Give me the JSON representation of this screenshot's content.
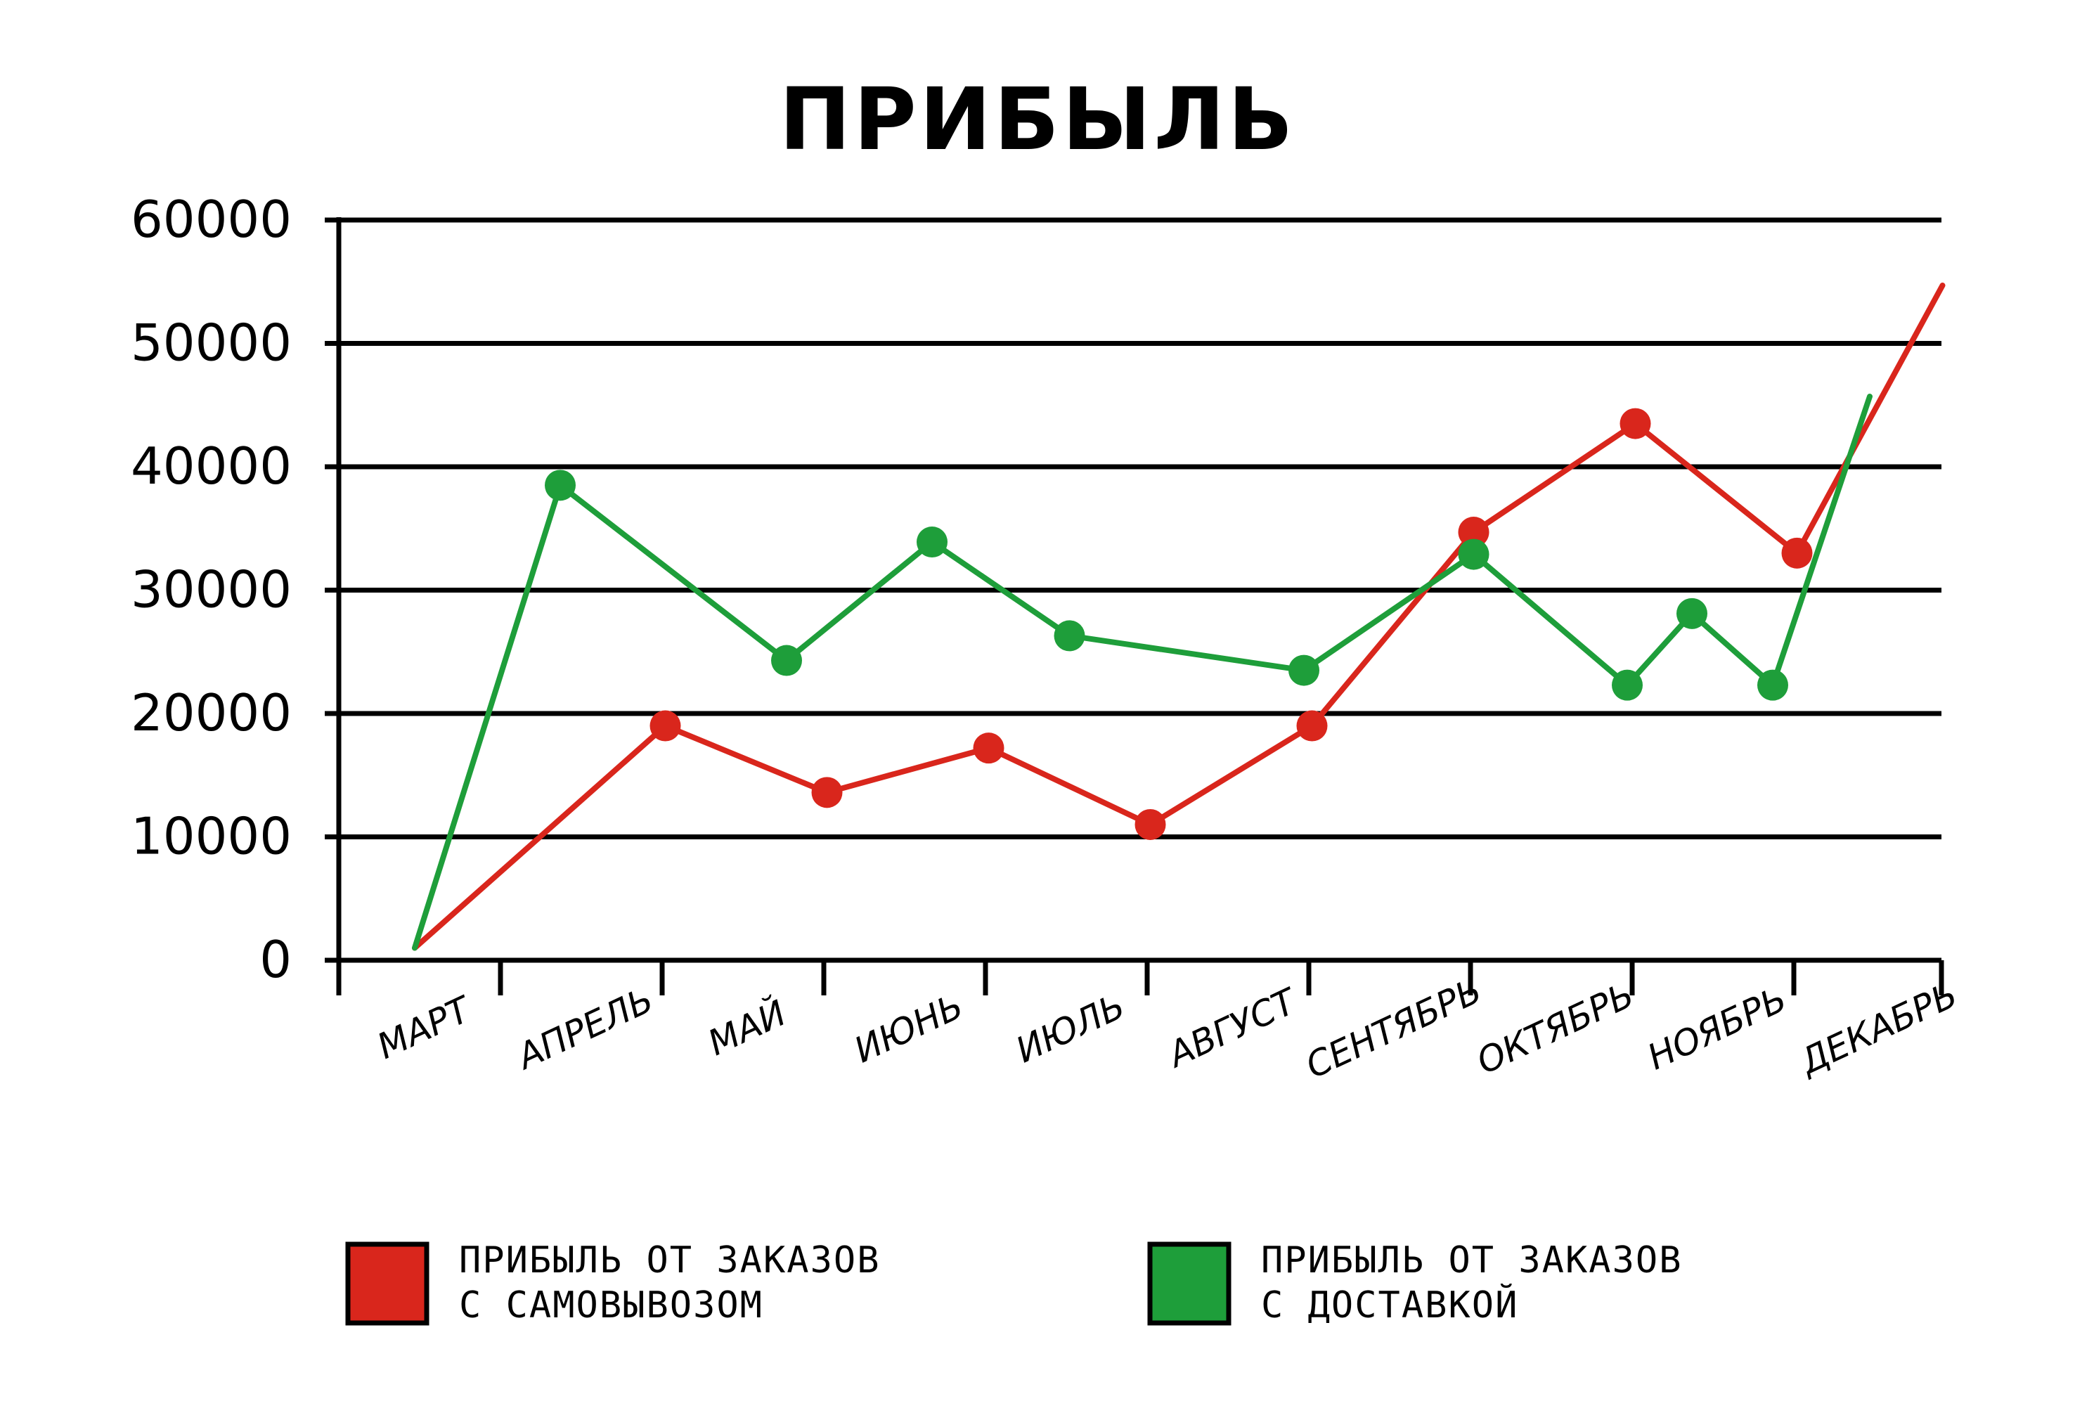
{
  "chart_data": {
    "type": "line",
    "title": "ПРИБЫЛЬ",
    "xlabel": "",
    "ylabel": "",
    "ylim": [
      0,
      60000
    ],
    "yticks": [
      0,
      10000,
      20000,
      30000,
      40000,
      50000,
      60000
    ],
    "ytick_labels": [
      "0",
      "10000",
      "20000",
      "30000",
      "40000",
      "50000",
      "60000"
    ],
    "categories": [
      "МАРТ",
      "АПРЕЛЬ",
      "МАЙ",
      "ИЮНЬ",
      "ИЮЛЬ",
      "АВГУСТ",
      "СЕНТЯБРЬ",
      "ОКТЯБРЬ",
      "НОЯБРЬ",
      "ДЕКАБРЬ"
    ],
    "grid": true,
    "legend_position": "bottom",
    "series": [
      {
        "name": "ПРИБЫЛЬ ОТ ЗАКАЗОВ С САМОВЫВОЗОМ",
        "legend_lines": [
          "ПРИБЫЛЬ ОТ ЗАКАЗОВ",
          "С САМОВЫВОЗОМ"
        ],
        "color": "#d9261c",
        "points": [
          {
            "x": 0.0,
            "y": 1000,
            "marker": false
          },
          {
            "x": 1.55,
            "y": 19000,
            "marker": true
          },
          {
            "x": 2.55,
            "y": 13600,
            "marker": true
          },
          {
            "x": 3.55,
            "y": 17200,
            "marker": true
          },
          {
            "x": 4.55,
            "y": 11000,
            "marker": true
          },
          {
            "x": 5.55,
            "y": 19000,
            "marker": true
          },
          {
            "x": 6.55,
            "y": 34700,
            "marker": true
          },
          {
            "x": 7.55,
            "y": 43500,
            "marker": true
          },
          {
            "x": 8.55,
            "y": 33000,
            "marker": true
          },
          {
            "x": 9.45,
            "y": 54700,
            "marker": false
          }
        ]
      },
      {
        "name": "ПРИБЫЛЬ ОТ ЗАКАЗОВ С ДОСТАВКОЙ",
        "legend_lines": [
          "ПРИБЫЛЬ ОТ ЗАКАЗОВ",
          "С ДОСТАВКОЙ"
        ],
        "color": "#1e9e3a",
        "points": [
          {
            "x": 0.0,
            "y": 1000,
            "marker": false
          },
          {
            "x": 0.9,
            "y": 38500,
            "marker": true
          },
          {
            "x": 2.3,
            "y": 24300,
            "marker": true
          },
          {
            "x": 3.2,
            "y": 33900,
            "marker": true
          },
          {
            "x": 4.05,
            "y": 26300,
            "marker": true
          },
          {
            "x": 5.5,
            "y": 23500,
            "marker": true
          },
          {
            "x": 6.55,
            "y": 32900,
            "marker": true
          },
          {
            "x": 7.5,
            "y": 22300,
            "marker": true
          },
          {
            "x": 7.9,
            "y": 28100,
            "marker": true
          },
          {
            "x": 8.4,
            "y": 22300,
            "marker": true
          },
          {
            "x": 9.0,
            "y": 45700,
            "marker": false
          }
        ]
      }
    ]
  }
}
